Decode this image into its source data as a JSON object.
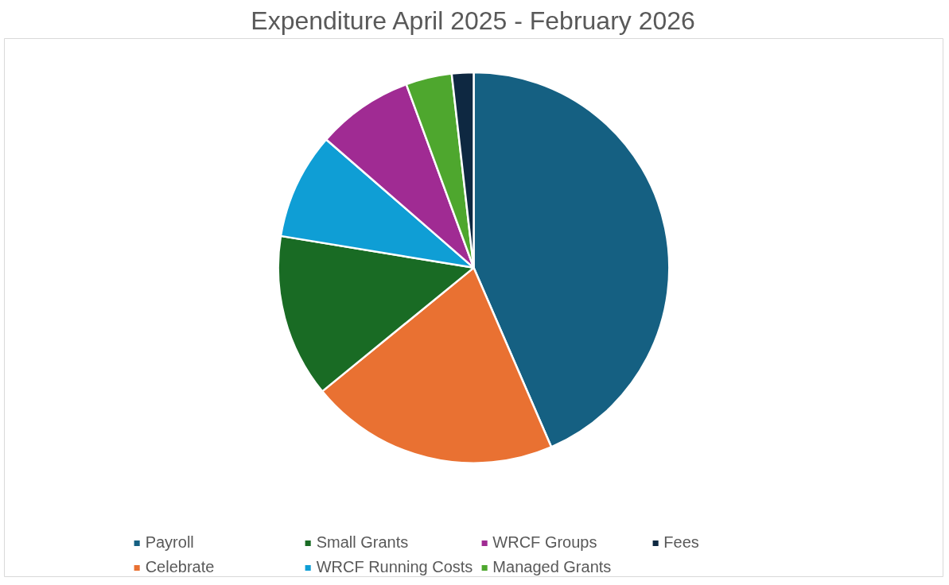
{
  "chart_data": {
    "type": "pie",
    "title": "Expenditure April 2025 - February 2026",
    "categories": [
      "Payroll",
      "Celebrate",
      "Small Grants",
      "WRCF Running Costs",
      "WRCF Groups",
      "Managed Grants",
      "Fees"
    ],
    "values": [
      43.5,
      20.6,
      13.5,
      8.8,
      8.0,
      3.8,
      1.8
    ],
    "colors": [
      "#156082",
      "#e97132",
      "#196b24",
      "#0f9ed5",
      "#a02b93",
      "#4ea72e",
      "#0e2841"
    ],
    "legend": "bottom"
  }
}
